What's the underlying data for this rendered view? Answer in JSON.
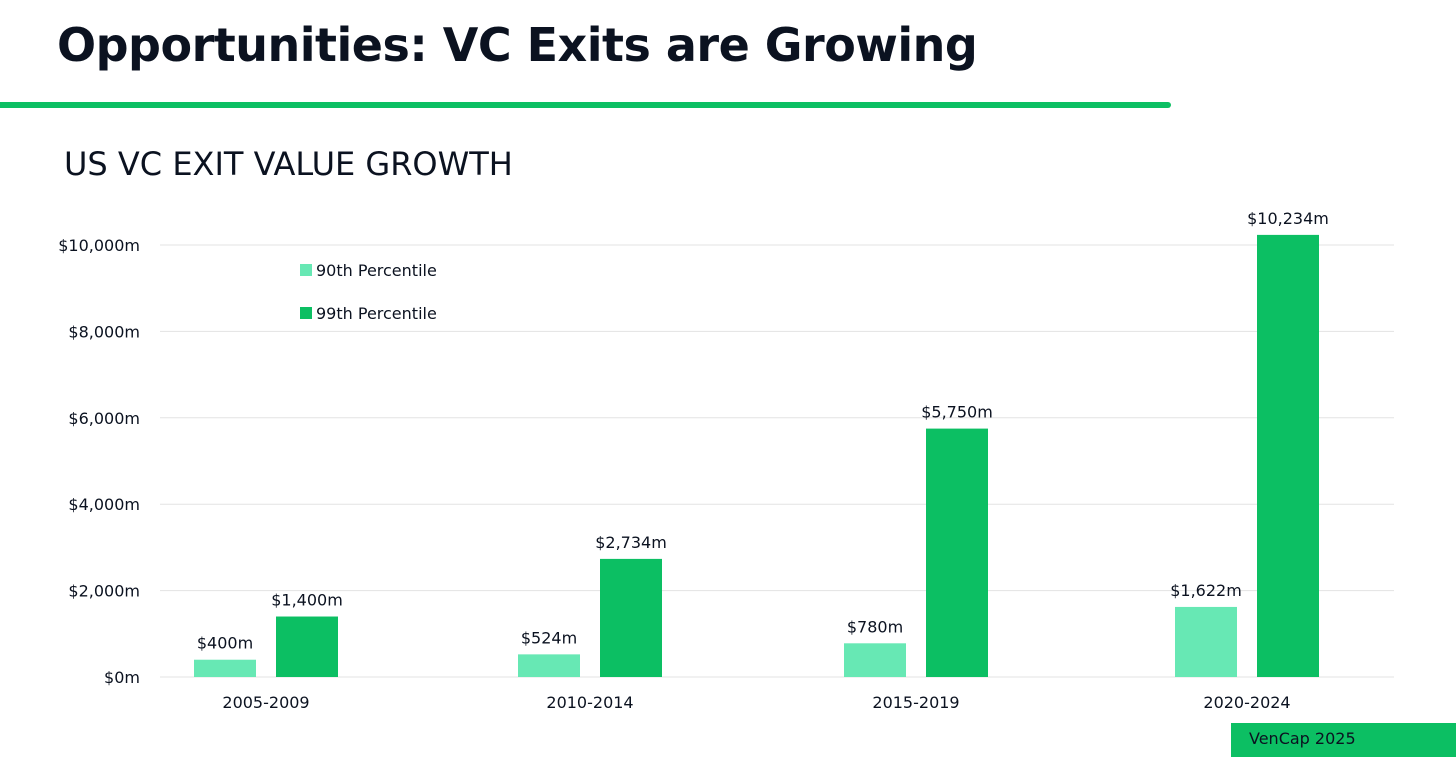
{
  "header": {
    "title": "Opportunities: VC Exits are Growing"
  },
  "colors": {
    "accent": "#0cbf63",
    "series_90": "#67e8b4",
    "series_99": "#0cbf63",
    "text": "#0b1220",
    "grid": "#e3e3e3"
  },
  "chart_data": {
    "type": "bar",
    "title": "US VC EXIT VALUE GROWTH",
    "xlabel": "",
    "ylabel": "",
    "categories": [
      "2005-2009",
      "2010-2014",
      "2015-2019",
      "2020-2024"
    ],
    "series": [
      {
        "name": "90th Percentile",
        "values": [
          400,
          524,
          780,
          1622
        ],
        "labels": [
          "$400m",
          "$524m",
          "$780m",
          "$1,622m"
        ],
        "color": "#67e8b4"
      },
      {
        "name": "99th Percentile",
        "values": [
          1400,
          2734,
          5750,
          10234
        ],
        "labels": [
          "$1,400m",
          "$2,734m",
          "$5,750m",
          "$10,234m"
        ],
        "color": "#0cbf63"
      }
    ],
    "yticks": [
      0,
      2000,
      4000,
      6000,
      8000,
      10000
    ],
    "ytick_labels": [
      "$0m",
      "$2,000m",
      "$4,000m",
      "$6,000m",
      "$8,000m",
      "$10,000m"
    ],
    "ylim": [
      0,
      10234
    ],
    "grid": true,
    "legend_position": "top-left"
  },
  "footer": {
    "source_label": "VenCap 2025"
  }
}
